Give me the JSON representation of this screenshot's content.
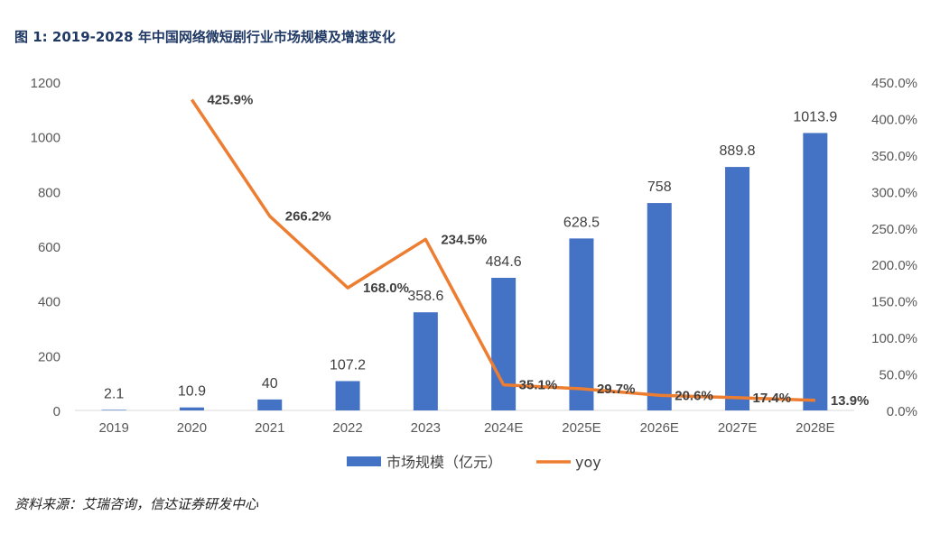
{
  "title": "图 1:  2019-2028 年中国网络微短剧行业市场规模及增速变化",
  "source": "资料来源：艾瑞咨询，信达证券研发中心",
  "chart_data": {
    "type": "bar",
    "categories": [
      "2019",
      "2020",
      "2021",
      "2022",
      "2023",
      "2024E",
      "2025E",
      "2026E",
      "2027E",
      "2028E"
    ],
    "series": [
      {
        "name": "市场规模（亿元）",
        "type": "bar",
        "axis": "left",
        "color": "#4472c4",
        "values": [
          2.1,
          10.9,
          40,
          107.2,
          358.6,
          484.6,
          628.5,
          758,
          889.8,
          1013.9
        ],
        "labels": [
          "2.1",
          "10.9",
          "40",
          "107.2",
          "358.6",
          "484.6",
          "628.5",
          "758",
          "889.8",
          "1013.9"
        ]
      },
      {
        "name": "yoy",
        "type": "line",
        "axis": "right",
        "color": "#ed7d31",
        "values": [
          null,
          425.9,
          266.2,
          168.0,
          234.5,
          35.1,
          29.7,
          20.6,
          17.4,
          13.9
        ],
        "labels": [
          "",
          "425.9%",
          "266.2%",
          "168.0%",
          "234.5%",
          "35.1%",
          "29.7%",
          "20.6%",
          "17.4%",
          "13.9%"
        ]
      }
    ],
    "y_left": {
      "min": 0,
      "max": 1200,
      "ticks": [
        "0",
        "200",
        "400",
        "600",
        "800",
        "1000",
        "1200"
      ]
    },
    "y_right": {
      "min": 0,
      "max": 450,
      "ticks": [
        "0.0%",
        "50.0%",
        "100.0%",
        "150.0%",
        "200.0%",
        "250.0%",
        "300.0%",
        "350.0%",
        "400.0%",
        "450.0%"
      ]
    },
    "grid": false,
    "legend_position": "bottom"
  }
}
